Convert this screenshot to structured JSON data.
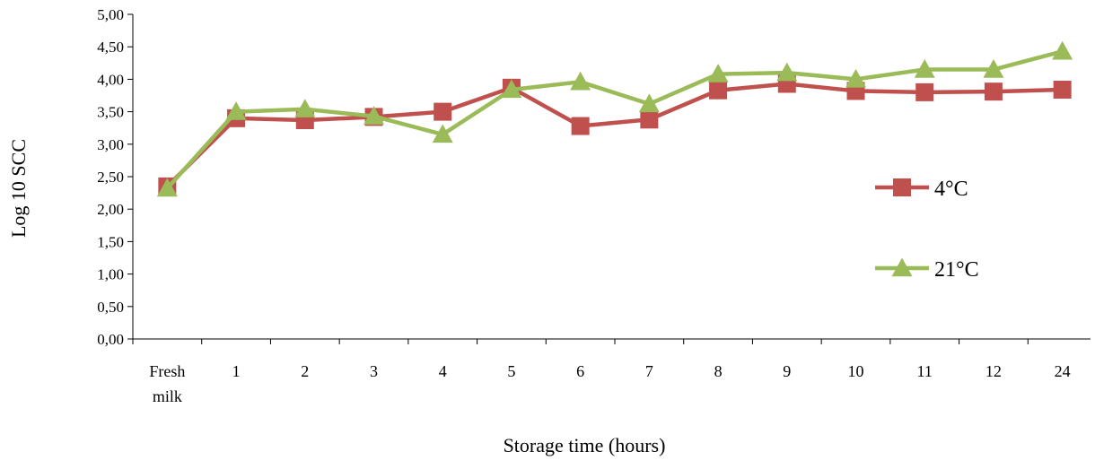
{
  "chart_data": {
    "type": "line",
    "xlabel": "Storage time (hours)",
    "ylabel": "Log 10 SCC",
    "categories": [
      [
        "Fresh",
        "milk"
      ],
      [
        "1"
      ],
      [
        "2"
      ],
      [
        "3"
      ],
      [
        "4"
      ],
      [
        "5"
      ],
      [
        "6"
      ],
      [
        "7"
      ],
      [
        "8"
      ],
      [
        "9"
      ],
      [
        "10"
      ],
      [
        "11"
      ],
      [
        "12"
      ],
      [
        "24"
      ]
    ],
    "ylim": [
      0,
      5
    ],
    "yticks": [
      "0,00",
      "0,50",
      "1,00",
      "1,50",
      "2,00",
      "2,50",
      "3,00",
      "3,50",
      "4,00",
      "4,50",
      "5,00"
    ],
    "grid": false,
    "legend_position": "right",
    "series": [
      {
        "name": "4°C",
        "marker": "square",
        "color": "#c0504d",
        "values": [
          2.35,
          3.4,
          3.37,
          3.42,
          3.5,
          3.87,
          3.28,
          3.38,
          3.83,
          3.93,
          3.82,
          3.8,
          3.81,
          3.84
        ]
      },
      {
        "name": "21°C",
        "marker": "triangle",
        "color": "#9bbb59",
        "values": [
          2.32,
          3.5,
          3.54,
          3.43,
          3.15,
          3.84,
          3.96,
          3.62,
          4.08,
          4.1,
          4.0,
          4.15,
          4.15,
          4.43
        ]
      }
    ]
  }
}
